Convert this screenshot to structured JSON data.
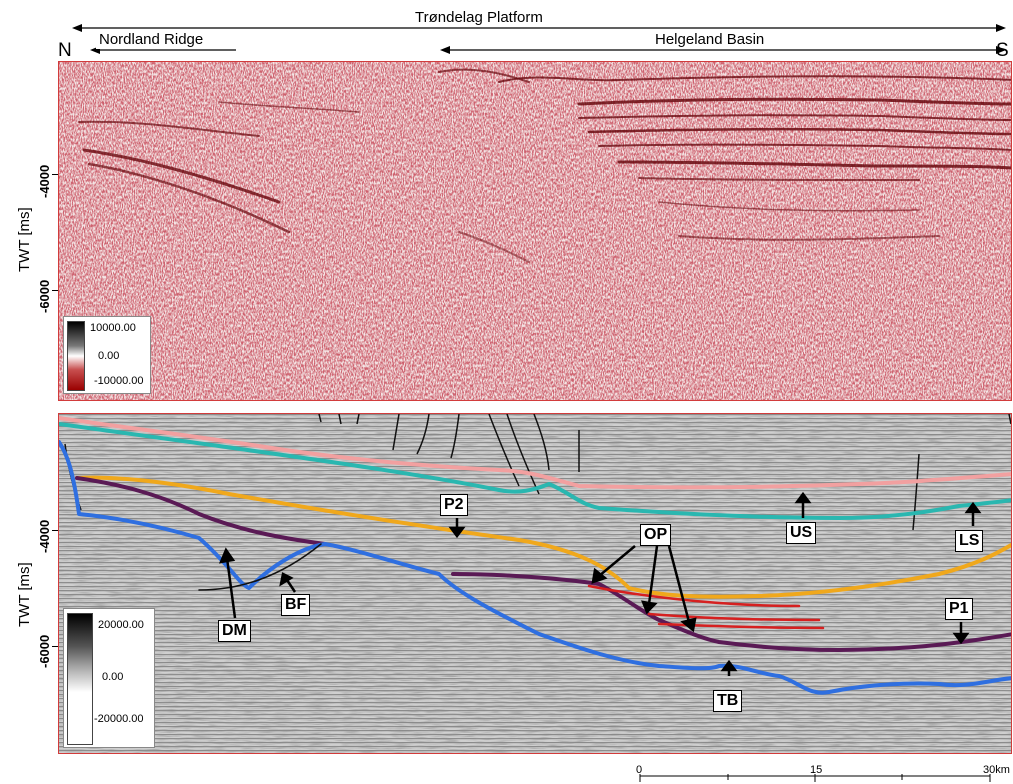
{
  "header": {
    "platform_label": "Trøndelag Platform",
    "ridge_label": "Nordland Ridge",
    "basin_label": "Helgeland Basin",
    "north_label": "N",
    "south_label": "S"
  },
  "top_panel": {
    "axis_title": "TWT [ms]",
    "ticks": [
      "-4000",
      "-6000"
    ],
    "legend": {
      "max": "10000.00",
      "mid": "0.00",
      "min": "-10000.00"
    }
  },
  "bottom_panel": {
    "axis_title": "TWT [ms]",
    "ticks": [
      "-4000",
      "-6000"
    ],
    "legend": {
      "max": "20000.00",
      "mid": "0.00",
      "min": "-20000.00"
    },
    "labels": {
      "p2": "P2",
      "op": "OP",
      "us": "US",
      "ls": "LS",
      "dm": "DM",
      "bf": "BF",
      "p1": "P1",
      "tb": "TB"
    },
    "horizon_colors": {
      "pink": "#f2a0a0",
      "cyan": "#2ab7b0",
      "orange": "#f0a81c",
      "purple": "#5a1a55",
      "blue": "#2f6fe0",
      "red": "#d62020"
    }
  },
  "scale_bar": {
    "labels": [
      "0",
      "15",
      "30km"
    ]
  }
}
